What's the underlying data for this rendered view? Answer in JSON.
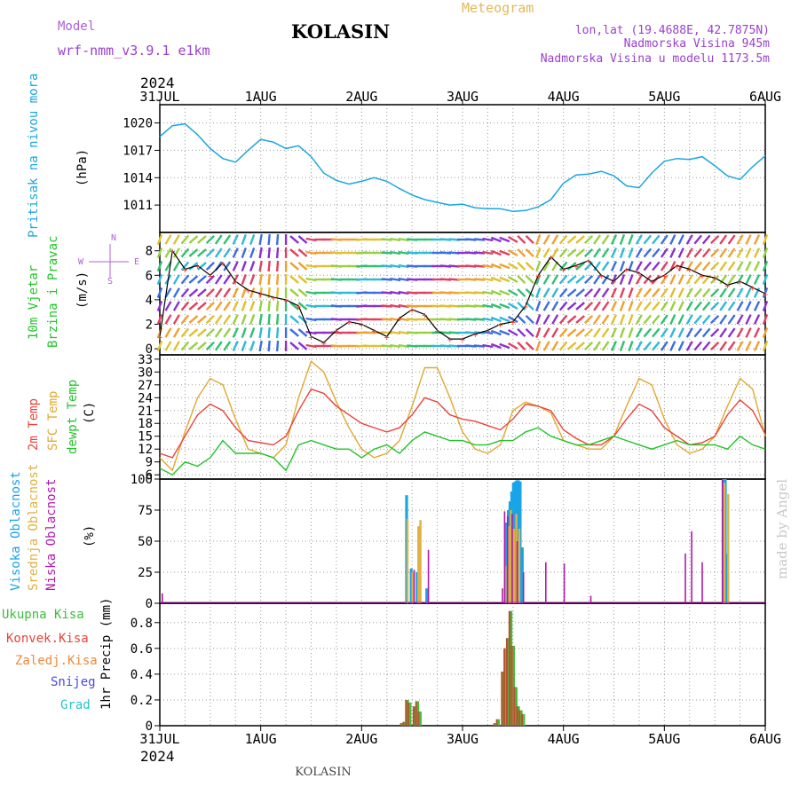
{
  "header": {
    "model_label": "Model",
    "model_name": "wrf-nmm_v3.9.1  e1km",
    "station": "KOLASIN",
    "meteogram": "Meteogram",
    "lonlat": "lon,lat (19.4688E, 42.7875N)",
    "elevation": "Nadmorska Visina 945m",
    "model_elevation": "Nadmorska Visina u modelu 1173.5m",
    "year": "2024",
    "footer_station": "KOLASIN",
    "credit": "made by Angel"
  },
  "colors": {
    "pressure": "#1aa6e0",
    "temp2m": "#e8443a",
    "sfc": "#e0a830",
    "dewpt": "#22c42a",
    "high": "#19a4e8",
    "mid": "#e0b040",
    "low": "#b018a8",
    "total": "#3bbf3b",
    "conv": "#b5542e",
    "purple": "#9a3fd0",
    "wind_label": "#22c42a",
    "grid": "#999999"
  },
  "time_axis": {
    "ticks": [
      "31JUL",
      "1AUG",
      "2AUG",
      "3AUG",
      "4AUG",
      "5AUG",
      "6AUG"
    ]
  },
  "chart_data": [
    {
      "type": "line",
      "panel": "pressure",
      "ylabel_words": [
        "Pritisak na nivou mora",
        "(hPa)"
      ],
      "ylim": [
        1008,
        1022
      ],
      "yticks": [
        "1011",
        "1014",
        "1017",
        "1020"
      ],
      "x_hours": [
        0,
        3,
        6,
        9,
        12,
        15,
        18,
        21,
        24,
        27,
        30,
        33,
        36,
        39,
        42,
        45,
        48,
        51,
        54,
        57,
        60,
        63,
        66,
        69,
        72,
        75,
        78,
        81,
        84,
        87,
        90,
        93,
        96,
        99,
        102,
        105,
        108,
        111,
        114,
        117,
        120,
        123,
        126,
        129,
        132,
        135,
        138,
        141,
        144
      ],
      "values": [
        1018.5,
        1019.7,
        1019.9,
        1018.7,
        1017.2,
        1016.1,
        1015.7,
        1017.0,
        1018.2,
        1017.9,
        1017.2,
        1017.5,
        1016.3,
        1014.5,
        1013.7,
        1013.3,
        1013.6,
        1014.0,
        1013.6,
        1012.8,
        1012.1,
        1011.6,
        1011.3,
        1011.0,
        1011.1,
        1010.7,
        1010.6,
        1010.6,
        1010.3,
        1010.4,
        1010.8,
        1011.6,
        1013.4,
        1014.3,
        1014.4,
        1014.7,
        1014.2,
        1013.1,
        1012.9,
        1014.5,
        1015.8,
        1016.1,
        1016.0,
        1016.3,
        1015.3,
        1014.2,
        1013.8,
        1015.2,
        1016.4
      ],
      "grid": true
    },
    {
      "type": "line",
      "panel": "wind",
      "ylabel_words": [
        "10m Vjetar",
        "Brzina i Pravac",
        "(m/s)"
      ],
      "compass": [
        "N",
        "S",
        "W",
        "E"
      ],
      "ylim": [
        -0.5,
        9.5
      ],
      "yticks": [
        "0",
        "2",
        "4",
        "6",
        "8"
      ],
      "x_hours": [
        0,
        3,
        6,
        9,
        12,
        15,
        18,
        21,
        24,
        27,
        30,
        33,
        36,
        39,
        42,
        45,
        48,
        51,
        54,
        57,
        60,
        63,
        66,
        69,
        72,
        75,
        78,
        81,
        84,
        87,
        90,
        93,
        96,
        99,
        102,
        105,
        108,
        111,
        114,
        117,
        120,
        123,
        126,
        129,
        132,
        135,
        138,
        141,
        144
      ],
      "speed": [
        1.0,
        8.0,
        6.5,
        6.8,
        6.0,
        7.0,
        5.5,
        4.8,
        4.5,
        4.2,
        4.0,
        3.5,
        1.0,
        0.5,
        1.5,
        2.2,
        2.0,
        1.5,
        1.0,
        2.5,
        3.2,
        2.8,
        1.5,
        0.8,
        0.8,
        1.2,
        1.5,
        2.0,
        2.2,
        3.5,
        6.0,
        7.5,
        6.5,
        6.8,
        7.2,
        6.0,
        5.5,
        6.5,
        6.2,
        5.5,
        6.0,
        6.8,
        6.5,
        6.0,
        5.8,
        5.2,
        5.5,
        5.0,
        4.5
      ],
      "direction_deg": [
        200,
        210,
        220,
        230,
        225,
        215,
        205,
        200,
        190,
        185,
        180,
        130,
        100,
        90,
        95,
        90,
        85,
        90,
        95,
        100,
        95,
        90,
        90,
        95,
        90,
        95,
        100,
        110,
        120,
        135,
        200,
        210,
        220,
        230,
        225,
        215,
        205,
        200,
        210,
        220,
        215,
        205,
        210,
        220,
        225,
        215,
        210,
        205,
        200
      ],
      "grid": true
    },
    {
      "type": "line",
      "panel": "temperature",
      "ylabel_words": [
        "2m Temp",
        "SFC Temp",
        "dewpt Temp",
        "(C)"
      ],
      "ylim": [
        5,
        34
      ],
      "yticks": [
        "6",
        "9",
        "12",
        "15",
        "18",
        "21",
        "24",
        "27",
        "30",
        "33"
      ],
      "x_hours": [
        0,
        3,
        6,
        9,
        12,
        15,
        18,
        21,
        24,
        27,
        30,
        33,
        36,
        39,
        42,
        45,
        48,
        51,
        54,
        57,
        60,
        63,
        66,
        69,
        72,
        75,
        78,
        81,
        84,
        87,
        90,
        93,
        96,
        99,
        102,
        105,
        108,
        111,
        114,
        117,
        120,
        123,
        126,
        129,
        132,
        135,
        138,
        141,
        144
      ],
      "series": [
        {
          "name": "2m Temp",
          "values": [
            11,
            10,
            15,
            20,
            22.5,
            21,
            17,
            14,
            13.5,
            13,
            15,
            21,
            26,
            25,
            22,
            20,
            18,
            17,
            16,
            17,
            20,
            24,
            23,
            20,
            19,
            18.5,
            17.5,
            16.5,
            19,
            22.5,
            22,
            21,
            16.5,
            14.5,
            13,
            13,
            15,
            19,
            22.5,
            21,
            17,
            15,
            13,
            13.5,
            15,
            20,
            23.5,
            21,
            15.5
          ]
        },
        {
          "name": "SFC Temp",
          "values": [
            10,
            7,
            16,
            24,
            28.5,
            27,
            19,
            12,
            11,
            10,
            13,
            24,
            32.5,
            30,
            23,
            17,
            12,
            10,
            11,
            14,
            22,
            31,
            31,
            24,
            16,
            12,
            11,
            13,
            21,
            23,
            22,
            20.5,
            14,
            13,
            12,
            12,
            15,
            22,
            28.5,
            27,
            19,
            13,
            11,
            12,
            15,
            22,
            28.5,
            26,
            15
          ]
        },
        {
          "name": "dewpt Temp",
          "values": [
            7.5,
            6,
            9,
            8,
            10,
            14,
            11,
            11,
            11,
            10,
            7,
            13,
            14,
            13,
            12,
            12,
            10,
            12,
            13,
            11,
            14,
            16,
            15,
            14,
            14,
            13,
            13,
            14,
            14,
            16,
            17,
            15,
            14,
            13,
            13,
            14,
            15,
            14,
            13,
            12,
            13,
            14,
            13,
            13,
            13,
            12,
            15,
            13,
            12
          ]
        }
      ],
      "grid": true
    },
    {
      "type": "bar",
      "panel": "clouds",
      "ylabel_words": [
        "Visoka Oblacnost",
        "Srednja Oblacnost",
        "Niska Oblacnost",
        "(%)"
      ],
      "ylim": [
        0,
        100
      ],
      "yticks": [
        "0",
        "25",
        "50",
        "75",
        "100"
      ],
      "series": [
        {
          "name": "Visoka Oblacnost",
          "bars": [
            [
              58.7,
              87
            ],
            [
              59.8,
              28
            ],
            [
              61.2,
              25
            ],
            [
              63.5,
              12
            ],
            [
              82.5,
              65
            ],
            [
              82.9,
              75
            ],
            [
              83.3,
              82
            ],
            [
              83.7,
              90
            ],
            [
              84.1,
              97
            ],
            [
              84.5,
              98
            ],
            [
              84.9,
              99
            ],
            [
              85.3,
              99
            ],
            [
              85.7,
              98
            ],
            [
              86.2,
              45
            ],
            [
              134.1,
              100
            ],
            [
              134.5,
              100
            ],
            [
              135.0,
              40
            ]
          ]
        },
        {
          "name": "Srednja Oblacnost",
          "bars": [
            [
              58.9,
              68
            ],
            [
              60.1,
              25
            ],
            [
              61.5,
              62
            ],
            [
              62.0,
              67
            ],
            [
              82.2,
              30
            ],
            [
              83.0,
              62
            ],
            [
              83.5,
              75
            ],
            [
              84.2,
              60
            ],
            [
              84.8,
              72
            ],
            [
              85.5,
              60
            ],
            [
              134.3,
              97
            ],
            [
              135.2,
              88
            ]
          ]
        },
        {
          "name": "Niska Oblacnost",
          "bars": [
            [
              0.6,
              8
            ],
            [
              60.5,
              27
            ],
            [
              63.9,
              43
            ],
            [
              81.5,
              12
            ],
            [
              82.0,
              74
            ],
            [
              82.7,
              70
            ],
            [
              83.8,
              72
            ],
            [
              85.0,
              50
            ],
            [
              86.5,
              25
            ],
            [
              91.8,
              33
            ],
            [
              96.2,
              32
            ],
            [
              102.5,
              6
            ],
            [
              125.0,
              40
            ],
            [
              126.5,
              58
            ],
            [
              129.0,
              33
            ],
            [
              133.8,
              100
            ]
          ]
        }
      ],
      "grid": true
    },
    {
      "type": "bar",
      "panel": "precip",
      "ylabel_words": [
        "1hr Precip (mm)"
      ],
      "legend": [
        "Ukupna Kisa",
        "Konvek.Kisa",
        "Zaledj.Kisa",
        "Snijeg",
        "Grad"
      ],
      "ylim": [
        0,
        0.95
      ],
      "yticks": [
        "0",
        "0.2",
        "0.4",
        "0.6",
        "0.8"
      ],
      "bars": [
        [
          57.6,
          0.02
        ],
        [
          58.2,
          0.03
        ],
        [
          58.8,
          0.2
        ],
        [
          59.4,
          0.18
        ],
        [
          60.6,
          0.15
        ],
        [
          61.2,
          0.19
        ],
        [
          61.8,
          0.11
        ],
        [
          79.8,
          0.02
        ],
        [
          80.4,
          0.05
        ],
        [
          81.6,
          0.42
        ],
        [
          82.2,
          0.6
        ],
        [
          82.8,
          0.68
        ],
        [
          83.4,
          0.89
        ],
        [
          84.0,
          0.62
        ],
        [
          84.6,
          0.3
        ],
        [
          85.2,
          0.15
        ],
        [
          85.8,
          0.12
        ],
        [
          86.4,
          0.09
        ]
      ],
      "grid": true
    }
  ]
}
